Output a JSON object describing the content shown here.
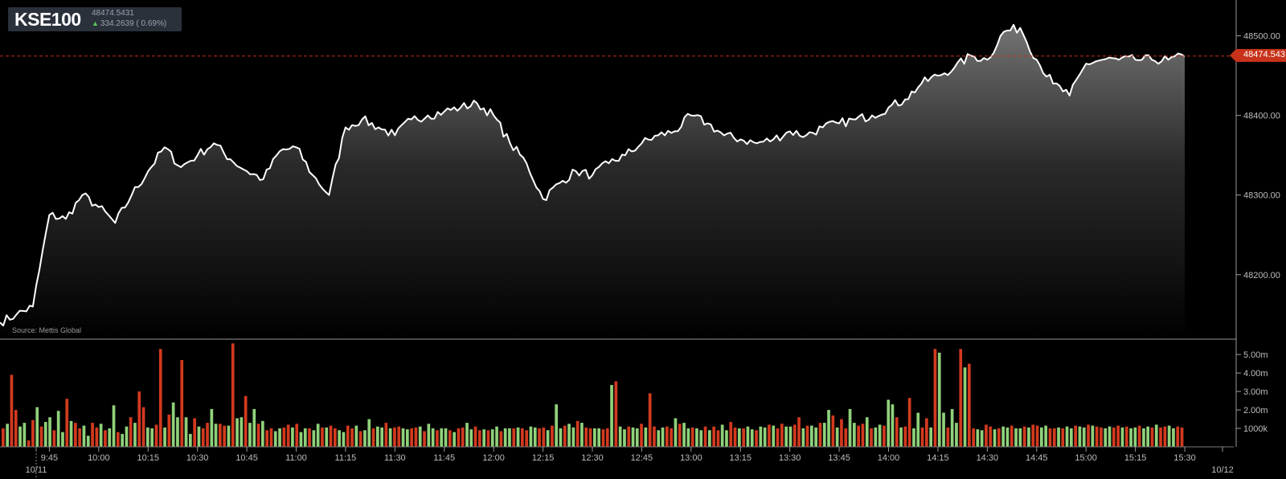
{
  "ticker": {
    "symbol": "KSE100",
    "price": "48474.5431",
    "change": "334.2639 ( 0.69%)"
  },
  "source": "Source: Mettis Global",
  "last_value_label": "48474.543",
  "colors": {
    "up": "#8fd17a",
    "down": "#d23a1e",
    "line": "#ffffff",
    "tag": "#c8321a"
  },
  "chart_data": [
    {
      "type": "area",
      "y_tick_labels": [
        "48200.00",
        "48300.00",
        "48400.00",
        "48500.00"
      ],
      "y_ticks": [
        48200,
        48300,
        48400,
        48500
      ],
      "ylim": [
        48120,
        48545
      ],
      "x_tick_labels": [
        "9:45",
        "10:00",
        "10:15",
        "10:30",
        "10:45",
        "11:00",
        "11:15",
        "11:30",
        "11:45",
        "12:00",
        "12:15",
        "12:30",
        "12:45",
        "13:00",
        "13:15",
        "13:30",
        "13:45",
        "14:00",
        "14:15",
        "14:30",
        "14:45",
        "15:00",
        "15:15",
        "15:30"
      ],
      "date_labels": [
        "10/11",
        "10/12"
      ],
      "last_value": 48474.5431,
      "series": [
        {
          "x": [
            "9:30",
            "9:35",
            "9:40",
            "9:45",
            "9:50",
            "9:55",
            "10:00",
            "10:05",
            "10:10",
            "10:15",
            "10:20",
            "10:25",
            "10:30",
            "10:35",
            "10:40",
            "10:45",
            "10:50",
            "10:55",
            "11:00",
            "11:05",
            "11:10",
            "11:15",
            "11:20",
            "11:25",
            "11:30",
            "11:35",
            "11:40",
            "11:45",
            "11:50",
            "11:55",
            "12:00",
            "12:05",
            "12:10",
            "12:15",
            "12:20",
            "12:25",
            "12:30",
            "12:35",
            "12:40",
            "12:45",
            "12:50",
            "12:55",
            "13:00",
            "13:05",
            "13:10",
            "13:15",
            "13:20",
            "13:25",
            "13:30",
            "13:35",
            "13:40",
            "13:45",
            "13:50",
            "13:55",
            "14:00",
            "14:05",
            "14:10",
            "14:15",
            "14:20",
            "14:25",
            "14:30",
            "14:35",
            "14:40",
            "14:45",
            "14:50",
            "14:55",
            "15:00",
            "15:05",
            "15:10",
            "15:15",
            "15:20",
            "15:25",
            "15:30"
          ],
          "values": [
            48140,
            48150,
            48160,
            48275,
            48270,
            48300,
            48285,
            48265,
            48300,
            48330,
            48360,
            48335,
            48350,
            48365,
            48345,
            48330,
            48320,
            48355,
            48360,
            48325,
            48300,
            48385,
            48395,
            48385,
            48375,
            48395,
            48400,
            48405,
            48410,
            48415,
            48400,
            48365,
            48340,
            48295,
            48315,
            48330,
            48325,
            48340,
            48350,
            48365,
            48375,
            48380,
            48400,
            48390,
            48375,
            48370,
            48365,
            48370,
            48380,
            48375,
            48385,
            48390,
            48395,
            48400,
            48410,
            48420,
            48440,
            48450,
            48460,
            48475,
            48470,
            48505,
            48510,
            48470,
            48440,
            48425,
            48465,
            48470,
            48470,
            48470,
            48470,
            48470,
            48474
          ]
        }
      ]
    },
    {
      "type": "bar",
      "y_tick_labels": [
        "1000k",
        "2.00m",
        "3.00m",
        "4.00m",
        "5.00m"
      ],
      "y_ticks": [
        1000000,
        2000000,
        3000000,
        4000000,
        5000000
      ],
      "ylim": [
        0,
        5700000
      ],
      "bar_count": 283,
      "series": [
        {
          "name": "Volume",
          "values": [
            1000000,
            1250000,
            3900000,
            2000000,
            1100000,
            1300000,
            350000,
            1450000,
            2150000,
            1100000,
            1350000,
            1600000,
            900000,
            1950000,
            800000,
            2600000,
            1400000,
            1300000,
            1000000,
            1150000,
            600000,
            1300000,
            1050000,
            1250000,
            900000,
            1000000,
            2250000,
            800000,
            700000,
            1100000,
            1600000,
            1300000,
            3000000,
            2150000,
            1050000,
            1000000,
            1200000,
            5300000,
            1050000,
            1750000,
            2400000,
            1600000,
            4700000,
            1600000,
            700000,
            1550000,
            1100000,
            1000000,
            1300000,
            2050000,
            1250000,
            1250000,
            1150000,
            1150000,
            5600000,
            1550000,
            1600000,
            2750000,
            1300000,
            2050000,
            1250000,
            1400000,
            900000,
            1000000,
            850000,
            1000000,
            1050000,
            1200000,
            1050000,
            1250000,
            800000,
            1000000,
            1000000,
            900000,
            1250000,
            1050000,
            1050000,
            1150000,
            1000000,
            900000,
            800000,
            1150000,
            1000000,
            1150000,
            850000,
            900000,
            1500000,
            1000000,
            1100000,
            1050000,
            1300000,
            1000000,
            1050000,
            1100000,
            1000000,
            950000,
            1000000,
            1050000,
            1100000,
            850000,
            1250000,
            1000000,
            900000,
            1000000,
            1000000,
            900000,
            800000,
            1000000,
            1050000,
            1300000,
            950000,
            1100000,
            900000,
            950000,
            900000,
            950000,
            1100000,
            850000,
            1000000,
            1000000,
            1000000,
            1050000,
            1000000,
            900000,
            1100000,
            1050000,
            1000000,
            1050000,
            900000,
            1150000,
            2300000,
            1000000,
            1150000,
            1250000,
            1050000,
            1400000,
            1300000,
            1050000,
            1000000,
            1000000,
            1000000,
            950000,
            1000000,
            3350000,
            3550000,
            1100000,
            950000,
            1100000,
            1050000,
            1000000,
            1250000,
            1050000,
            2900000,
            1100000,
            900000,
            1050000,
            1100000,
            1000000,
            1550000,
            1250000,
            1300000,
            1000000,
            1050000,
            1000000,
            900000,
            1100000,
            900000,
            1100000,
            900000,
            1200000,
            900000,
            1350000,
            1050000,
            1000000,
            1000000,
            1100000,
            950000,
            900000,
            1100000,
            1050000,
            1200000,
            1150000,
            1000000,
            1250000,
            1100000,
            1100000,
            1200000,
            1600000,
            1000000,
            1150000,
            1150000,
            1050000,
            1300000,
            1300000,
            2000000,
            1700000,
            1050000,
            1500000,
            1000000,
            2050000,
            1300000,
            1150000,
            1250000,
            1600000,
            1000000,
            1050000,
            1200000,
            1150000,
            2550000,
            2300000,
            1600000,
            1050000,
            1100000,
            2650000,
            1000000,
            1850000,
            1050000,
            1550000,
            1050000,
            5300000,
            5100000,
            1850000,
            1050000,
            2050000,
            1300000,
            5300000,
            4300000,
            4500000,
            1000000,
            950000,
            900000,
            1200000,
            1100000,
            950000,
            1000000,
            1100000,
            1050000,
            1150000,
            1000000,
            1000000,
            1100000,
            1050000,
            1200000,
            1150000,
            1050000,
            1150000,
            1000000,
            1000000,
            1050000,
            1000000,
            1100000,
            1000000,
            1150000,
            1100000,
            1050000,
            1200000,
            1150000,
            1100000,
            1050000,
            1000000,
            1100000,
            1050000,
            1150000,
            1050000,
            1100000,
            1000000,
            1050000,
            1150000,
            1000000,
            1100000,
            1050000,
            1200000,
            1050000,
            1100000,
            1150000,
            1000000,
            1100000,
            1050000
          ]
        }
      ]
    }
  ]
}
